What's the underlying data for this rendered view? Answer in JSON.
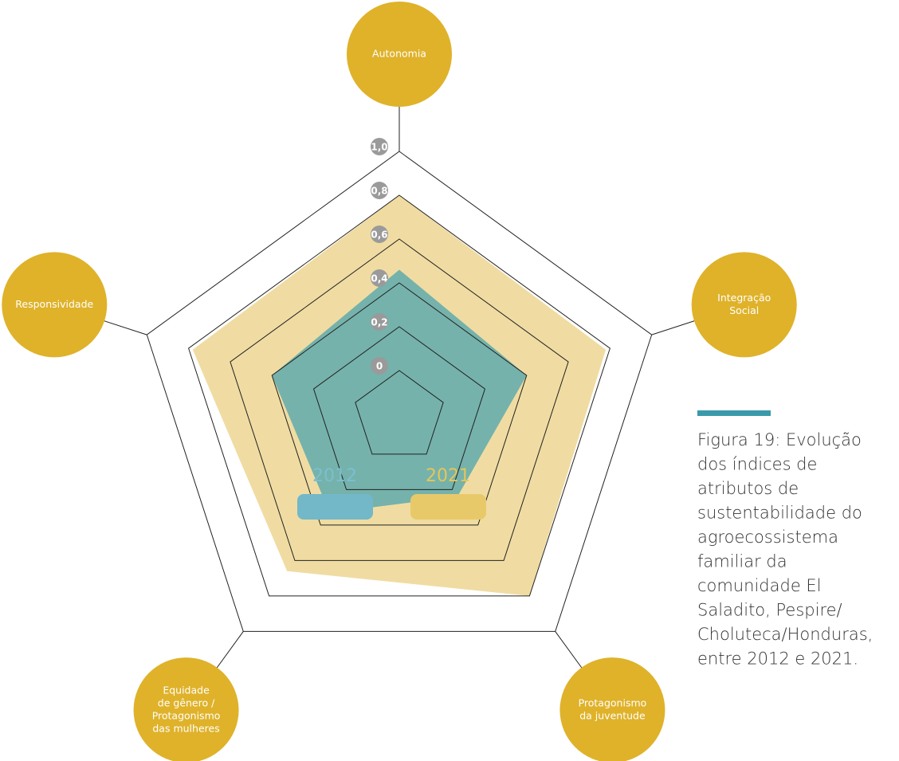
{
  "chart_data": {
    "type": "radar",
    "categories": [
      [
        "Autonomia"
      ],
      [
        "Integração",
        "Social"
      ],
      [
        "Protagonismo",
        "da juventude"
      ],
      [
        "Equidade",
        "de gênero /",
        "Protagonismo",
        "das mulheres"
      ],
      [
        "Responsividade"
      ]
    ],
    "series": [
      {
        "name": "2021",
        "color": "#f0dca2",
        "legend_color": "#e8c96a",
        "text_color": "#e6c55a",
        "values": [
          0.8,
          0.78,
          0.8,
          0.66,
          0.78
        ]
      },
      {
        "name": "2012",
        "color": "#6aaeab",
        "legend_color": "#72b8c9",
        "text_color": "#7bbfd0",
        "values": [
          0.46,
          0.4,
          0.24,
          0.33,
          0.4
        ]
      }
    ],
    "ylim": [
      0,
      1
    ],
    "yticks": [
      0,
      {
        "value": 0.2,
        "label": "0,2"
      },
      {
        "value": 0.4,
        "label": "0,4"
      },
      {
        "value": 0.6,
        "label": "0,6"
      },
      {
        "value": 0.8,
        "label": "0,8"
      },
      {
        "value": 1,
        "label": "1,0"
      }
    ],
    "label_color": "#dfb22a",
    "caption": [
      "Figura 19: Evolução",
      "dos índices de",
      "atributos de",
      "sustentabilidade do",
      "agroecossistema",
      "familiar da",
      "comunidade El",
      "Saladito, Pespire/",
      "Choluteca/Honduras,",
      "entre 2012 e 2021."
    ]
  }
}
